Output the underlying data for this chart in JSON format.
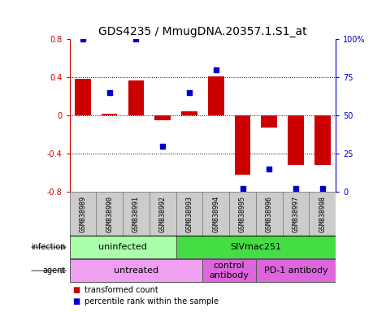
{
  "title": "GDS4235 / MmugDNA.20357.1.S1_at",
  "samples": [
    "GSM838989",
    "GSM838990",
    "GSM838991",
    "GSM838992",
    "GSM838993",
    "GSM838994",
    "GSM838995",
    "GSM838996",
    "GSM838997",
    "GSM838998"
  ],
  "bar_values": [
    0.38,
    0.02,
    0.37,
    -0.05,
    0.04,
    0.41,
    -0.62,
    -0.13,
    -0.52,
    -0.52
  ],
  "dot_values_pct": [
    100,
    65,
    100,
    30,
    65,
    80,
    2,
    15,
    2,
    2
  ],
  "ylim": [
    -0.8,
    0.8
  ],
  "y2lim": [
    0,
    100
  ],
  "bar_color": "#cc0000",
  "dot_color": "#0000cc",
  "dotted_lines": [
    -0.4,
    0.0,
    0.4
  ],
  "infection_labels": [
    {
      "text": "uninfected",
      "start": 0,
      "end": 4,
      "color": "#aaffaa"
    },
    {
      "text": "SIVmac251",
      "start": 4,
      "end": 10,
      "color": "#44dd44"
    }
  ],
  "agent_labels": [
    {
      "text": "untreated",
      "start": 0,
      "end": 5,
      "color": "#f0a0f0"
    },
    {
      "text": "control\nantibody",
      "start": 5,
      "end": 7,
      "color": "#dd66dd"
    },
    {
      "text": "PD-1 antibody",
      "start": 7,
      "end": 10,
      "color": "#dd66dd"
    }
  ],
  "legend_items": [
    {
      "label": "transformed count",
      "color": "#cc0000"
    },
    {
      "label": "percentile rank within the sample",
      "color": "#0000cc"
    }
  ],
  "title_fontsize": 10,
  "tick_fontsize": 7,
  "label_fontsize": 8,
  "sample_fontsize": 6
}
